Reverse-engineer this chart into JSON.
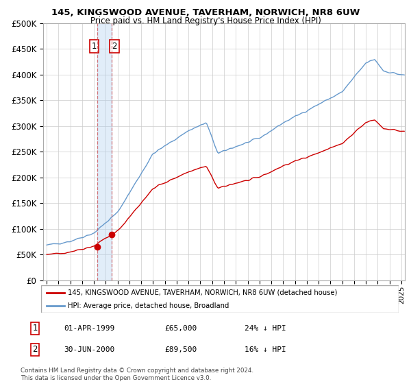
{
  "title": "145, KINGSWOOD AVENUE, TAVERHAM, NORWICH, NR8 6UW",
  "subtitle": "Price paid vs. HM Land Registry's House Price Index (HPI)",
  "footnote": "Contains HM Land Registry data © Crown copyright and database right 2024.\nThis data is licensed under the Open Government Licence v3.0.",
  "legend_line1": "145, KINGSWOOD AVENUE, TAVERHAM, NORWICH, NR8 6UW (detached house)",
  "legend_line2": "HPI: Average price, detached house, Broadland",
  "red_color": "#cc0000",
  "blue_color": "#6699cc",
  "transaction1": {
    "label": "1",
    "date": "01-APR-1999",
    "price": "£65,000",
    "hpi": "24% ↓ HPI"
  },
  "transaction2": {
    "label": "2",
    "date": "30-JUN-2000",
    "price": "£89,500",
    "hpi": "16% ↓ HPI"
  },
  "ylim": [
    0,
    500000
  ],
  "yticks": [
    0,
    50000,
    100000,
    150000,
    200000,
    250000,
    300000,
    350000,
    400000,
    450000,
    500000
  ],
  "background_color": "#ffffff",
  "grid_color": "#cccccc",
  "t1_year": 1999.25,
  "t2_year": 2000.5,
  "price_t1": 65000,
  "price_t2": 89500
}
